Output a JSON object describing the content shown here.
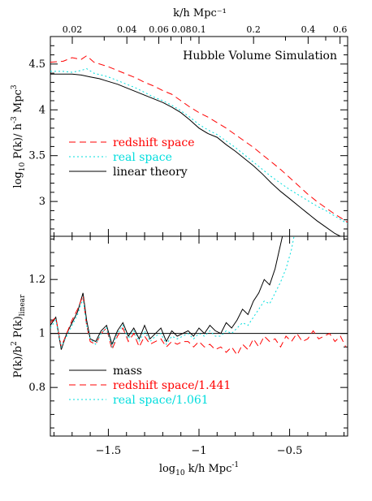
{
  "chart_data": [
    {
      "type": "line",
      "panel": "top",
      "title": "Hubble Volume Simulation",
      "ylabel_main": "log",
      "ylabel_sub": "10",
      "ylabel_rest": " P(k)/ h",
      "ylabel_sup": "-3",
      "ylabel_tail": " Mpc",
      "ylabel_sup2": "3",
      "top_axis_label": "k/h Mpc⁻¹",
      "xlim": [
        -1.82,
        -0.18
      ],
      "ylim": [
        2.62,
        4.8
      ],
      "yticks": [
        3,
        3.5,
        4,
        4.5
      ],
      "ytick_labels": [
        "3",
        "3.5",
        "4",
        "4.5"
      ],
      "top_ticks": [
        0.02,
        0.04,
        0.06,
        0.08,
        0.1,
        0.2,
        0.4,
        0.6
      ],
      "top_tick_labels": [
        "0.02",
        "0.04",
        "0.06",
        "0.08",
        "0.1",
        "0.2",
        "0.4",
        "0.6"
      ],
      "legend": "left-middle",
      "series": [
        {
          "name": "redshift space",
          "color": "#ff0000",
          "dash": "8,5",
          "x": [
            -1.82,
            -1.75,
            -1.7,
            -1.65,
            -1.62,
            -1.58,
            -1.5,
            -1.45,
            -1.4,
            -1.35,
            -1.3,
            -1.25,
            -1.2,
            -1.15,
            -1.1,
            -1.05,
            -1.0,
            -0.95,
            -0.9,
            -0.85,
            -0.8,
            -0.75,
            -0.7,
            -0.65,
            -0.6,
            -0.55,
            -0.5,
            -0.45,
            -0.4,
            -0.35,
            -0.3,
            -0.25,
            -0.2,
            -0.18
          ],
          "y": [
            4.52,
            4.53,
            4.57,
            4.55,
            4.59,
            4.52,
            4.47,
            4.43,
            4.39,
            4.35,
            4.3,
            4.26,
            4.21,
            4.17,
            4.1,
            4.03,
            3.97,
            3.92,
            3.86,
            3.8,
            3.73,
            3.66,
            3.59,
            3.51,
            3.43,
            3.35,
            3.26,
            3.17,
            3.08,
            3.0,
            2.93,
            2.86,
            2.8,
            2.77
          ]
        },
        {
          "name": "real space",
          "color": "#00dddd",
          "dash": "2,3",
          "x": [
            -1.82,
            -1.75,
            -1.7,
            -1.65,
            -1.62,
            -1.58,
            -1.5,
            -1.45,
            -1.4,
            -1.35,
            -1.3,
            -1.25,
            -1.2,
            -1.15,
            -1.1,
            -1.05,
            -1.0,
            -0.95,
            -0.9,
            -0.85,
            -0.8,
            -0.75,
            -0.7,
            -0.65,
            -0.6,
            -0.55,
            -0.5,
            -0.45,
            -0.4,
            -0.35,
            -0.3,
            -0.25,
            -0.2,
            -0.18
          ],
          "y": [
            4.42,
            4.42,
            4.41,
            4.43,
            4.45,
            4.4,
            4.36,
            4.32,
            4.28,
            4.24,
            4.19,
            4.14,
            4.1,
            4.05,
            3.99,
            3.92,
            3.84,
            3.78,
            3.73,
            3.66,
            3.59,
            3.51,
            3.43,
            3.35,
            3.27,
            3.2,
            3.13,
            3.07,
            3.01,
            2.95,
            2.9,
            2.84,
            2.78,
            2.76
          ]
        },
        {
          "name": "linear theory",
          "color": "#000000",
          "dash": "",
          "x": [
            -1.82,
            -1.75,
            -1.7,
            -1.65,
            -1.6,
            -1.55,
            -1.5,
            -1.45,
            -1.4,
            -1.35,
            -1.3,
            -1.25,
            -1.2,
            -1.15,
            -1.1,
            -1.05,
            -1.0,
            -0.95,
            -0.9,
            -0.85,
            -0.8,
            -0.75,
            -0.7,
            -0.65,
            -0.6,
            -0.55,
            -0.5,
            -0.45,
            -0.4,
            -0.35,
            -0.3,
            -0.25,
            -0.22
          ],
          "y": [
            4.39,
            4.39,
            4.39,
            4.38,
            4.36,
            4.34,
            4.31,
            4.28,
            4.24,
            4.2,
            4.16,
            4.12,
            4.08,
            4.03,
            3.97,
            3.89,
            3.8,
            3.74,
            3.7,
            3.62,
            3.55,
            3.47,
            3.39,
            3.3,
            3.2,
            3.11,
            3.03,
            2.95,
            2.87,
            2.79,
            2.72,
            2.65,
            2.62
          ]
        }
      ]
    },
    {
      "type": "line",
      "panel": "bottom",
      "xlabel_main": "log",
      "xlabel_sub": "10",
      "xlabel_rest": " k/h Mpc",
      "xlabel_sup": "-1",
      "ylabel_main": "P(k)/b",
      "ylabel_sup": "2",
      "ylabel_rest": " P(k)",
      "ylabel_sub": "linear",
      "xlim": [
        -1.82,
        -0.18
      ],
      "ylim": [
        0.62,
        1.36
      ],
      "xticks": [
        -1.5,
        -1,
        -0.5
      ],
      "xtick_labels": [
        "-1.5",
        "-1",
        "-0.5"
      ],
      "yticks": [
        0.8,
        1,
        1.2
      ],
      "ytick_labels": [
        "0.8",
        "1",
        "1.2"
      ],
      "reference_line": 1.0,
      "legend": "bottom-left",
      "series": [
        {
          "name": "mass",
          "color": "#000000",
          "dash": "",
          "x": [
            -1.82,
            -1.79,
            -1.76,
            -1.73,
            -1.7,
            -1.67,
            -1.64,
            -1.62,
            -1.6,
            -1.57,
            -1.54,
            -1.51,
            -1.48,
            -1.45,
            -1.42,
            -1.39,
            -1.36,
            -1.33,
            -1.3,
            -1.27,
            -1.24,
            -1.21,
            -1.18,
            -1.15,
            -1.12,
            -1.09,
            -1.06,
            -1.03,
            -1.0,
            -0.97,
            -0.94,
            -0.91,
            -0.88,
            -0.85,
            -0.82,
            -0.79,
            -0.76,
            -0.73,
            -0.7,
            -0.67,
            -0.64,
            -0.61,
            -0.58,
            -0.56,
            -0.54,
            -0.53
          ],
          "y": [
            1.03,
            1.06,
            0.94,
            1.0,
            1.04,
            1.08,
            1.15,
            1.05,
            0.98,
            0.97,
            1.01,
            1.03,
            0.96,
            1.01,
            1.04,
            0.99,
            1.02,
            0.98,
            1.03,
            0.98,
            1.0,
            1.02,
            0.97,
            1.01,
            0.99,
            1.0,
            1.01,
            0.99,
            1.02,
            1.0,
            1.03,
            1.01,
            1.0,
            1.04,
            1.02,
            1.05,
            1.09,
            1.07,
            1.12,
            1.15,
            1.2,
            1.18,
            1.24,
            1.3,
            1.36,
            1.4
          ]
        },
        {
          "name": "redshift space/1.441",
          "color": "#ff0000",
          "dash": "8,5",
          "x": [
            -1.82,
            -1.79,
            -1.76,
            -1.73,
            -1.7,
            -1.67,
            -1.64,
            -1.62,
            -1.6,
            -1.57,
            -1.54,
            -1.51,
            -1.48,
            -1.45,
            -1.42,
            -1.39,
            -1.36,
            -1.33,
            -1.3,
            -1.27,
            -1.24,
            -1.21,
            -1.18,
            -1.15,
            -1.12,
            -1.09,
            -1.06,
            -1.03,
            -1.0,
            -0.97,
            -0.94,
            -0.91,
            -0.88,
            -0.85,
            -0.82,
            -0.79,
            -0.76,
            -0.73,
            -0.7,
            -0.67,
            -0.64,
            -0.61,
            -0.58,
            -0.55,
            -0.52,
            -0.49,
            -0.46,
            -0.43,
            -0.4,
            -0.37,
            -0.34,
            -0.31,
            -0.28,
            -0.25,
            -0.22,
            -0.19
          ],
          "y": [
            1.04,
            1.06,
            0.95,
            1.0,
            1.05,
            1.09,
            1.14,
            1.03,
            0.97,
            0.96,
            1.0,
            1.02,
            0.94,
            0.99,
            1.02,
            0.97,
            1.0,
            0.95,
            0.99,
            0.96,
            0.97,
            0.98,
            0.95,
            0.97,
            0.96,
            0.97,
            0.97,
            0.95,
            0.97,
            0.95,
            0.96,
            0.94,
            0.95,
            0.93,
            0.95,
            0.92,
            0.96,
            0.94,
            0.98,
            0.95,
            0.99,
            0.97,
            0.98,
            0.95,
            0.99,
            0.97,
            1.0,
            0.97,
            0.98,
            1.01,
            0.98,
            0.99,
            1.0,
            0.97,
            0.99,
            0.95
          ]
        },
        {
          "name": "real space/1.061",
          "color": "#00dddd",
          "dash": "2,3",
          "x": [
            -1.82,
            -1.79,
            -1.76,
            -1.73,
            -1.7,
            -1.67,
            -1.64,
            -1.62,
            -1.6,
            -1.57,
            -1.54,
            -1.51,
            -1.48,
            -1.45,
            -1.42,
            -1.39,
            -1.36,
            -1.33,
            -1.3,
            -1.27,
            -1.24,
            -1.21,
            -1.18,
            -1.15,
            -1.12,
            -1.09,
            -1.06,
            -1.03,
            -1.0,
            -0.97,
            -0.94,
            -0.91,
            -0.88,
            -0.85,
            -0.82,
            -0.79,
            -0.76,
            -0.73,
            -0.7,
            -0.67,
            -0.64,
            -0.61,
            -0.58,
            -0.55,
            -0.52,
            -0.49,
            -0.47
          ],
          "y": [
            1.02,
            1.05,
            0.95,
            0.99,
            1.03,
            1.07,
            1.13,
            1.03,
            0.98,
            0.96,
            1.0,
            1.02,
            0.95,
            1.0,
            1.03,
            0.98,
            1.01,
            0.97,
            1.01,
            0.97,
            0.99,
            1.0,
            0.96,
            0.99,
            0.98,
            0.99,
            1.0,
            0.98,
            1.0,
            0.99,
            1.01,
            0.99,
            0.99,
            1.01,
            1.0,
            1.02,
            1.04,
            1.03,
            1.06,
            1.09,
            1.12,
            1.11,
            1.15,
            1.19,
            1.24,
            1.31,
            1.38
          ]
        }
      ]
    }
  ]
}
